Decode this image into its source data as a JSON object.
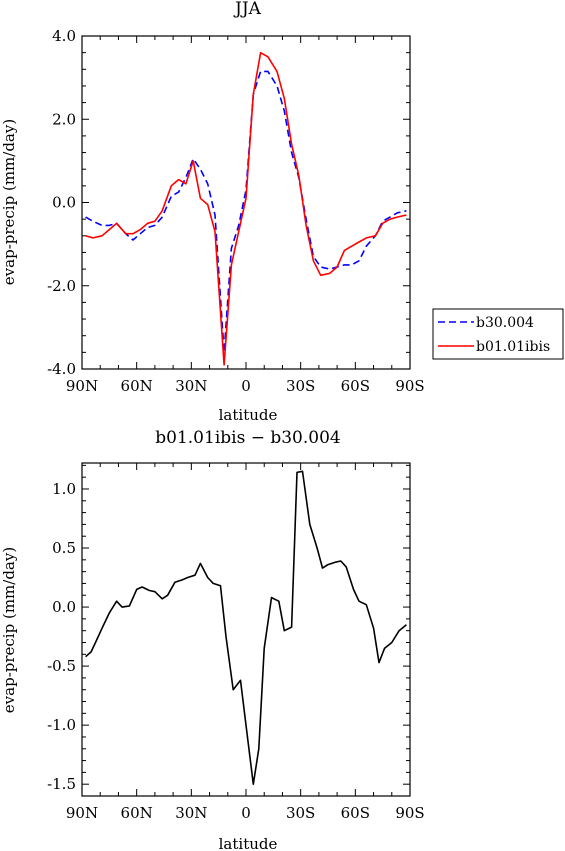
{
  "chart_data": [
    {
      "type": "line",
      "title": "JJA",
      "xlabel": "latitude",
      "ylabel": "evap-precip (mm/day)",
      "x_ticks": [
        "90N",
        "60N",
        "30N",
        "0",
        "30S",
        "60S",
        "90S"
      ],
      "x_tick_values": [
        90,
        60,
        30,
        0,
        -30,
        -60,
        -90
      ],
      "xlim": [
        90,
        -90
      ],
      "ylim": [
        -4.0,
        4.0
      ],
      "y_ticks": [
        "-4.0",
        "-2.0",
        "0.0",
        "2.0",
        "4.0"
      ],
      "y_tick_values": [
        -4,
        -2,
        0,
        2,
        4
      ],
      "grid": false,
      "legend_position": "right",
      "x": [
        88,
        84,
        79,
        75,
        71,
        66,
        62,
        58,
        54,
        50,
        46,
        41,
        37,
        33,
        29,
        25,
        21,
        17,
        12,
        8,
        4,
        0,
        -4,
        -8,
        -12,
        -17,
        -21,
        -25,
        -29,
        -33,
        -37,
        -41,
        -46,
        -50,
        -54,
        -58,
        -62,
        -66,
        -71,
        -75,
        -79,
        -83,
        -88
      ],
      "series": [
        {
          "name": "b30.004",
          "color": "#0000ff",
          "dash": "dashed",
          "values": [
            -0.35,
            -0.45,
            -0.55,
            -0.55,
            -0.5,
            -0.75,
            -0.9,
            -0.75,
            -0.6,
            -0.55,
            -0.35,
            0.15,
            0.25,
            0.6,
            1.05,
            0.8,
            0.45,
            -0.3,
            -3.6,
            -1.1,
            -0.55,
            0.3,
            2.6,
            3.15,
            3.15,
            2.8,
            2.2,
            1.2,
            0.6,
            -0.4,
            -1.3,
            -1.55,
            -1.6,
            -1.55,
            -1.5,
            -1.5,
            -1.4,
            -1.05,
            -0.8,
            -0.45,
            -0.35,
            -0.25,
            -0.2
          ]
        },
        {
          "name": "b01.01ibis",
          "color": "#ff0000",
          "dash": "solid",
          "values": [
            -0.8,
            -0.85,
            -0.8,
            -0.65,
            -0.5,
            -0.75,
            -0.75,
            -0.65,
            -0.5,
            -0.45,
            -0.2,
            0.4,
            0.55,
            0.45,
            1.0,
            0.1,
            -0.05,
            -0.7,
            -3.9,
            -1.5,
            -0.7,
            0.1,
            2.6,
            3.6,
            3.5,
            3.15,
            2.5,
            1.4,
            0.65,
            -0.55,
            -1.4,
            -1.75,
            -1.7,
            -1.55,
            -1.15,
            -1.05,
            -0.95,
            -0.85,
            -0.8,
            -0.5,
            -0.4,
            -0.35,
            -0.3
          ]
        }
      ]
    },
    {
      "type": "line",
      "title": "b01.01ibis − b30.004",
      "xlabel": "latitude",
      "ylabel": "evap-precip (mm/day)",
      "x_ticks": [
        "90N",
        "60N",
        "30N",
        "0",
        "30S",
        "60S",
        "90S"
      ],
      "x_tick_values": [
        90,
        60,
        30,
        0,
        -30,
        -60,
        -90
      ],
      "xlim": [
        90,
        -90
      ],
      "ylim": [
        -1.6,
        1.22
      ],
      "y_ticks": [
        "-1.5",
        "-1.0",
        "-0.5",
        "0.0",
        "0.5",
        "1.0"
      ],
      "y_tick_values": [
        -1.5,
        -1.0,
        -0.5,
        0.0,
        0.5,
        1.0
      ],
      "grid": false,
      "x": [
        88,
        85,
        82,
        79,
        75,
        71,
        68,
        64,
        60,
        57,
        53,
        50,
        46,
        43,
        39,
        35,
        32,
        28,
        25,
        21,
        18,
        14,
        11,
        7,
        3,
        0,
        -4,
        -7,
        -10,
        -14,
        -18,
        -21,
        -25,
        -28,
        -31,
        -35,
        -39,
        -42,
        -45,
        -49,
        -52,
        -55,
        -59,
        -62,
        -66,
        -70,
        -73,
        -76,
        -80,
        -84,
        -88
      ],
      "series": [
        {
          "color": "#000000",
          "values": [
            -0.42,
            -0.38,
            -0.28,
            -0.18,
            -0.05,
            0.05,
            0.0,
            0.01,
            0.15,
            0.17,
            0.14,
            0.13,
            0.07,
            0.1,
            0.21,
            0.23,
            0.25,
            0.27,
            0.37,
            0.25,
            0.2,
            0.18,
            -0.25,
            -0.7,
            -0.62,
            -1.0,
            -1.5,
            -1.2,
            -0.35,
            0.08,
            0.05,
            -0.2,
            -0.17,
            1.14,
            1.15,
            0.7,
            0.5,
            0.33,
            0.36,
            0.38,
            0.39,
            0.34,
            0.15,
            0.05,
            0.02,
            -0.18,
            -0.47,
            -0.35,
            -0.3,
            -0.2,
            -0.15
          ]
        }
      ]
    }
  ],
  "colors": {
    "series1": "#0000ff",
    "series2": "#ff0000",
    "diff": "#000000"
  }
}
